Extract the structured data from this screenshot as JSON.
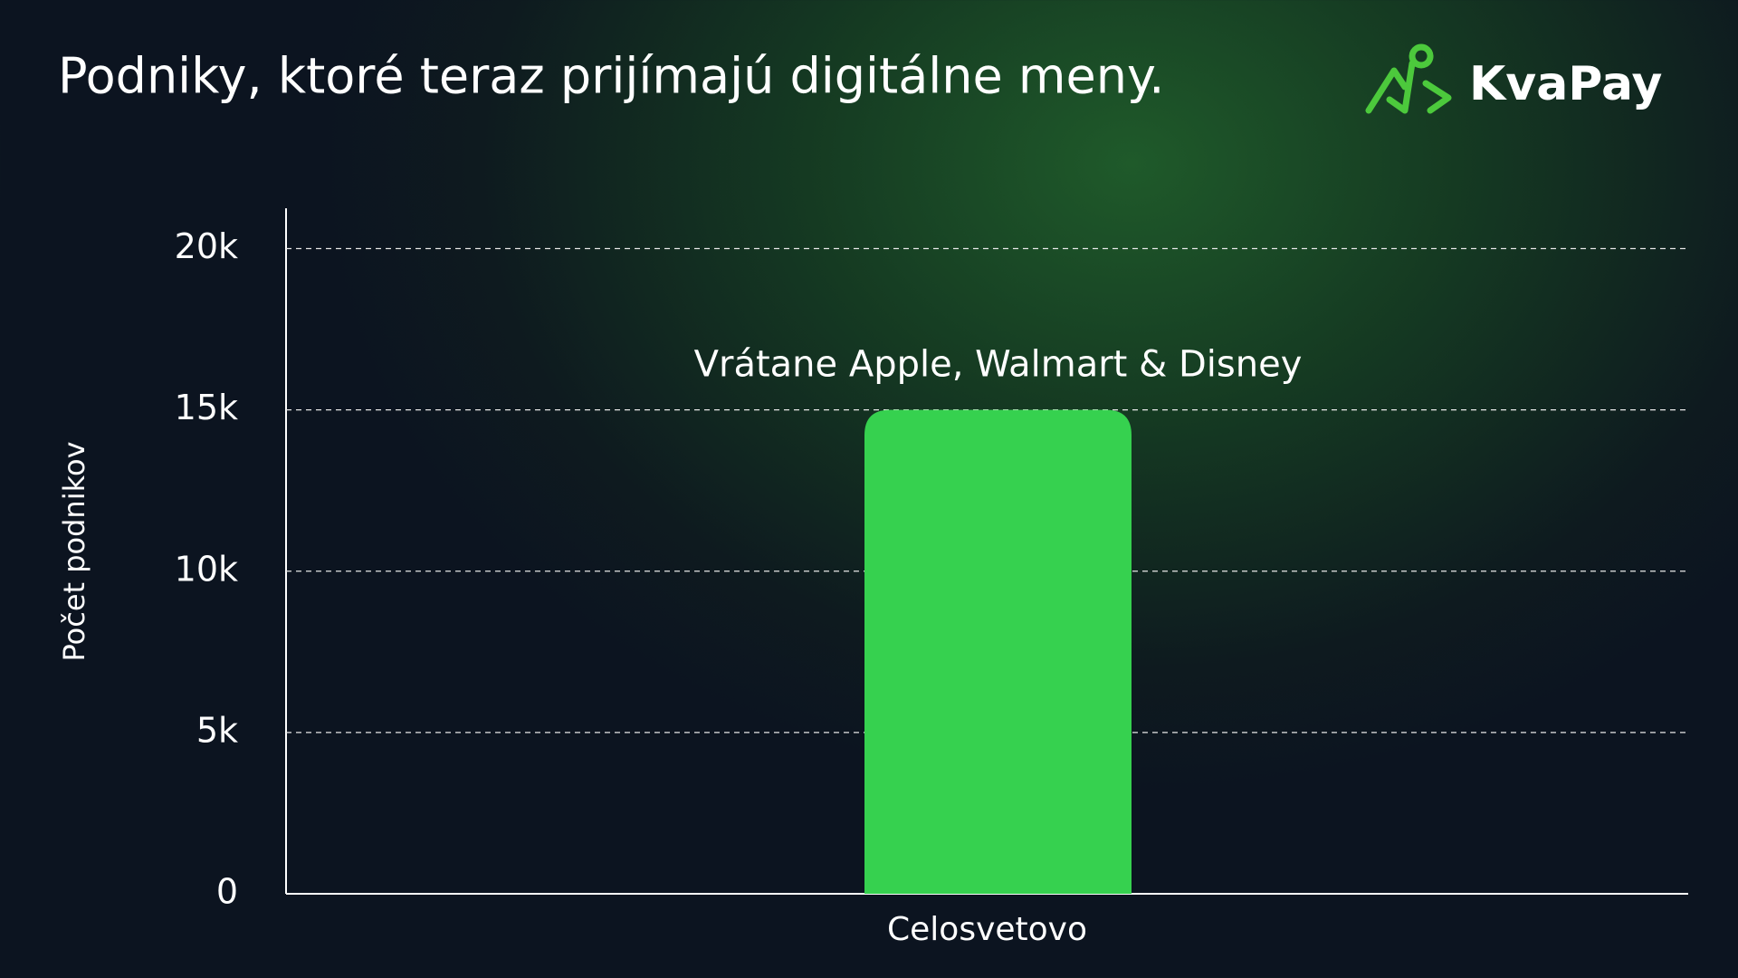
{
  "brand": "KvaPay",
  "chart_data": {
    "type": "bar",
    "title": "Podniky, ktoré teraz prijímajú digitálne meny.",
    "ylabel": "Počet podnikov",
    "categories": [
      "Celosvetovo"
    ],
    "values": [
      15000
    ],
    "color": "#36d14f",
    "annotation": "Vrátane Apple, Walmart & Disney",
    "ylim": [
      0,
      21250
    ],
    "yticks": [
      0,
      {
        "value": 5000,
        "label": "5k"
      },
      {
        "value": 10000,
        "label": "10k"
      },
      {
        "value": 15000,
        "label": "15k"
      },
      {
        "value": 20000,
        "label": "20k"
      }
    ],
    "grid": true
  }
}
